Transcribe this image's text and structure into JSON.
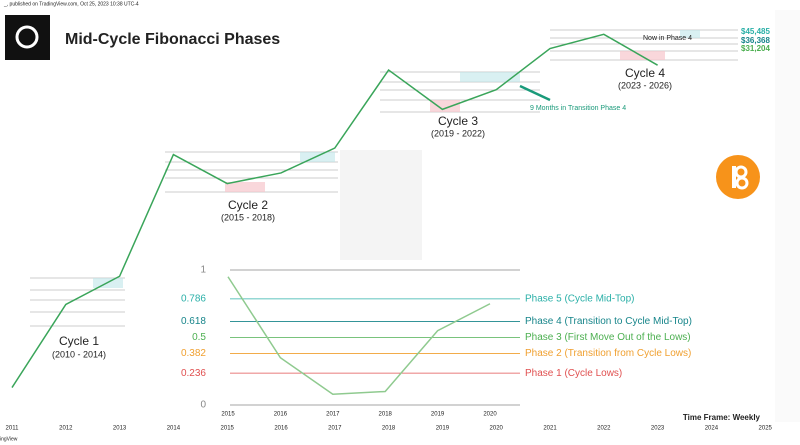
{
  "header": {
    "byline": "_, published on TradingView.com, Oct 25, 2023 10:38 UTC-4",
    "title": "Mid-Cycle Fibonacci Phases",
    "footer": "ingView"
  },
  "chart_data": [
    {
      "type": "line",
      "log_scale": true,
      "categories": [
        "2011",
        "2012",
        "2013",
        "2014",
        "2015",
        "2016",
        "2017",
        "2018",
        "2019",
        "2020",
        "2021",
        "2022",
        "2023",
        "2024",
        "2025"
      ],
      "series": [
        {
          "name": "BTC",
          "color": "#3aa55a",
          "values": [
            0.3,
            5,
            13,
            800,
            300,
            430,
            1000,
            14000,
            3700,
            7200,
            29000,
            47000,
            16500,
            null,
            null
          ]
        }
      ],
      "ylim": [
        0.1,
        100000
      ],
      "annotations": {
        "cycle1": "Cycle 1",
        "cycle1_years": "(2010 - 2014)",
        "cycle2": "Cycle 2",
        "cycle2_years": "(2015 - 2018)",
        "cycle3": "Cycle 3",
        "cycle3_years": "(2019 - 2022)",
        "cycle4": "Cycle 4",
        "cycle4_years": "(2023 - 2026)",
        "transition": "9 Months in Transition Phase 4",
        "now": "Now in Phase 4",
        "level_a": "$45,485",
        "level_b": "$36,368",
        "level_c": "$31,204",
        "timeframe": "Time Frame: Weekly"
      }
    },
    {
      "type": "line",
      "categories": [
        "2015",
        "2016",
        "2017",
        "2018",
        "2019",
        "2020"
      ],
      "series": [
        {
          "name": "Cycle 2",
          "color": "#8fca8f",
          "values": [
            0.95,
            0.35,
            0.08,
            0.1,
            0.55,
            0.75
          ]
        }
      ],
      "ylim": [
        0,
        1
      ],
      "yticks": [
        1,
        0.786,
        0.618,
        0.5,
        0.382,
        0.236,
        0
      ],
      "phases": [
        {
          "name": "Phase 5 (Cycle Mid-Top)",
          "color": "#2bb0a8"
        },
        {
          "name": "Phase 4 (Transition to Cycle Mid-Top)",
          "color": "#17858a"
        },
        {
          "name": "Phase 3 (First Move Out of the Lows)",
          "color": "#4caf50"
        },
        {
          "name": "Phase 2 (Transition from Cycle Lows)",
          "color": "#f0a030"
        },
        {
          "name": "Phase 1 (Cycle Lows)",
          "color": "#e05050"
        }
      ]
    }
  ]
}
